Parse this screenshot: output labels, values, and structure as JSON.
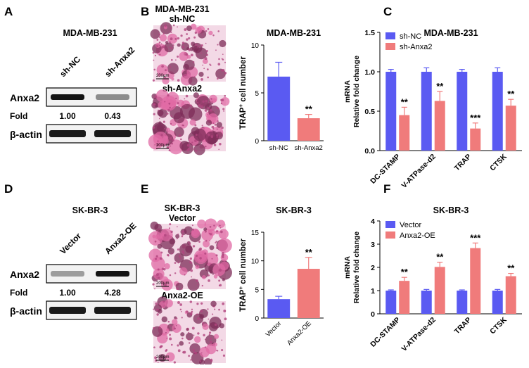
{
  "colors": {
    "blue": "#5A5AF2",
    "red": "#F07B7B",
    "band": "#1a1a1a",
    "stain_bg": "#f3d9e6",
    "stain_cell": "#7d2c58",
    "stain_pink": "#e06aa4"
  },
  "panels": {
    "A": {
      "letter": "A",
      "cell_line": "MDA-MB-231",
      "lanes": [
        "sh-NC",
        "sh-Anxa2"
      ],
      "protein": "Anxa2",
      "fold_label": "Fold",
      "fold_values": [
        "1.00",
        "0.43"
      ],
      "loading": "β-actin",
      "band_strength": [
        1.0,
        0.43
      ]
    },
    "B": {
      "letter": "B",
      "cell_line": "MDA-MB-231",
      "image_labels": [
        "sh-NC",
        "sh-Anxa2"
      ],
      "scale_bar": "200μm"
    },
    "D": {
      "letter": "D",
      "cell_line": "SK-BR-3",
      "lanes": [
        "Vector",
        "Anxa2-OE"
      ],
      "protein": "Anxa2",
      "fold_label": "Fold",
      "fold_values": [
        "1.00",
        "4.28"
      ],
      "loading": "β-actin",
      "band_strength": [
        0.35,
        1.0
      ]
    },
    "E": {
      "letter": "E",
      "cell_line": "SK-BR-3",
      "image_labels": [
        "Vector",
        "Anxa2-OE"
      ],
      "scale_bar": "200μm"
    }
  },
  "chart_data": [
    {
      "id": "B",
      "type": "bar",
      "title": "MDA-MB-231",
      "ylabel_main": "TRAP",
      "ylabel_sup": "+",
      "ylabel_tail": " cell number",
      "categories": [
        "sh-NC",
        "sh-Anxa2"
      ],
      "values": [
        6.7,
        2.35
      ],
      "errors": [
        1.5,
        0.4
      ],
      "colors": [
        "#5A5AF2",
        "#F07B7B"
      ],
      "ylim": [
        0,
        10
      ],
      "yticks": [
        0,
        5,
        10
      ],
      "significance": [
        "",
        "**"
      ],
      "xtick_rotated": false
    },
    {
      "id": "C",
      "type": "bar",
      "title": "MDA-MB-231",
      "ylabel_lines": [
        "mRNA",
        "Relative fold change"
      ],
      "categories": [
        "DC-STAMP",
        "V-ATPase-d2",
        "TRAP",
        "CTSK"
      ],
      "series": [
        {
          "name": "sh-NC",
          "values": [
            1.0,
            1.0,
            1.0,
            1.0
          ],
          "errors": [
            0.03,
            0.05,
            0.03,
            0.05
          ]
        },
        {
          "name": "sh-Anxa2",
          "values": [
            0.45,
            0.63,
            0.28,
            0.57
          ],
          "errors": [
            0.1,
            0.12,
            0.07,
            0.08
          ]
        }
      ],
      "significance": [
        "**",
        "**",
        "***",
        "**"
      ],
      "ylim": [
        0,
        1.5
      ],
      "yticks": [
        0.0,
        0.5,
        1.0,
        1.5
      ],
      "ytick_labels": [
        "0.0",
        "0.5",
        "1.0",
        "1.5"
      ],
      "legend": [
        "sh-NC",
        "sh-Anxa2"
      ]
    },
    {
      "id": "E",
      "type": "bar",
      "title": "SK-BR-3",
      "ylabel_main": "TRAP",
      "ylabel_sup": "+",
      "ylabel_tail": " cell number",
      "categories": [
        "Vector",
        "Anxa2-OE"
      ],
      "values": [
        3.3,
        8.6
      ],
      "errors": [
        0.5,
        2.0
      ],
      "colors": [
        "#5A5AF2",
        "#F07B7B"
      ],
      "ylim": [
        0,
        15
      ],
      "yticks": [
        0,
        5,
        10,
        15
      ],
      "significance": [
        "",
        "**"
      ],
      "xtick_rotated": true
    },
    {
      "id": "F",
      "type": "bar",
      "title": "SK-BR-3",
      "ylabel_lines": [
        "mRNA",
        "Relative fold change"
      ],
      "categories": [
        "DC-STAMP",
        "V-ATPase-d2",
        "TRAP",
        "CTSK"
      ],
      "series": [
        {
          "name": "Vector",
          "values": [
            1.0,
            1.0,
            1.0,
            1.0
          ],
          "errors": [
            0.03,
            0.05,
            0.03,
            0.05
          ]
        },
        {
          "name": "Anxa2-OE",
          "values": [
            1.42,
            2.02,
            2.83,
            1.62
          ],
          "errors": [
            0.15,
            0.2,
            0.22,
            0.12
          ]
        }
      ],
      "significance": [
        "**",
        "**",
        "***",
        "**"
      ],
      "ylim": [
        0,
        4
      ],
      "yticks": [
        0,
        1,
        2,
        3,
        4
      ],
      "ytick_labels": [
        "0",
        "1",
        "2",
        "3",
        "4"
      ],
      "legend": [
        "Vector",
        "Anxa2-OE"
      ]
    }
  ]
}
